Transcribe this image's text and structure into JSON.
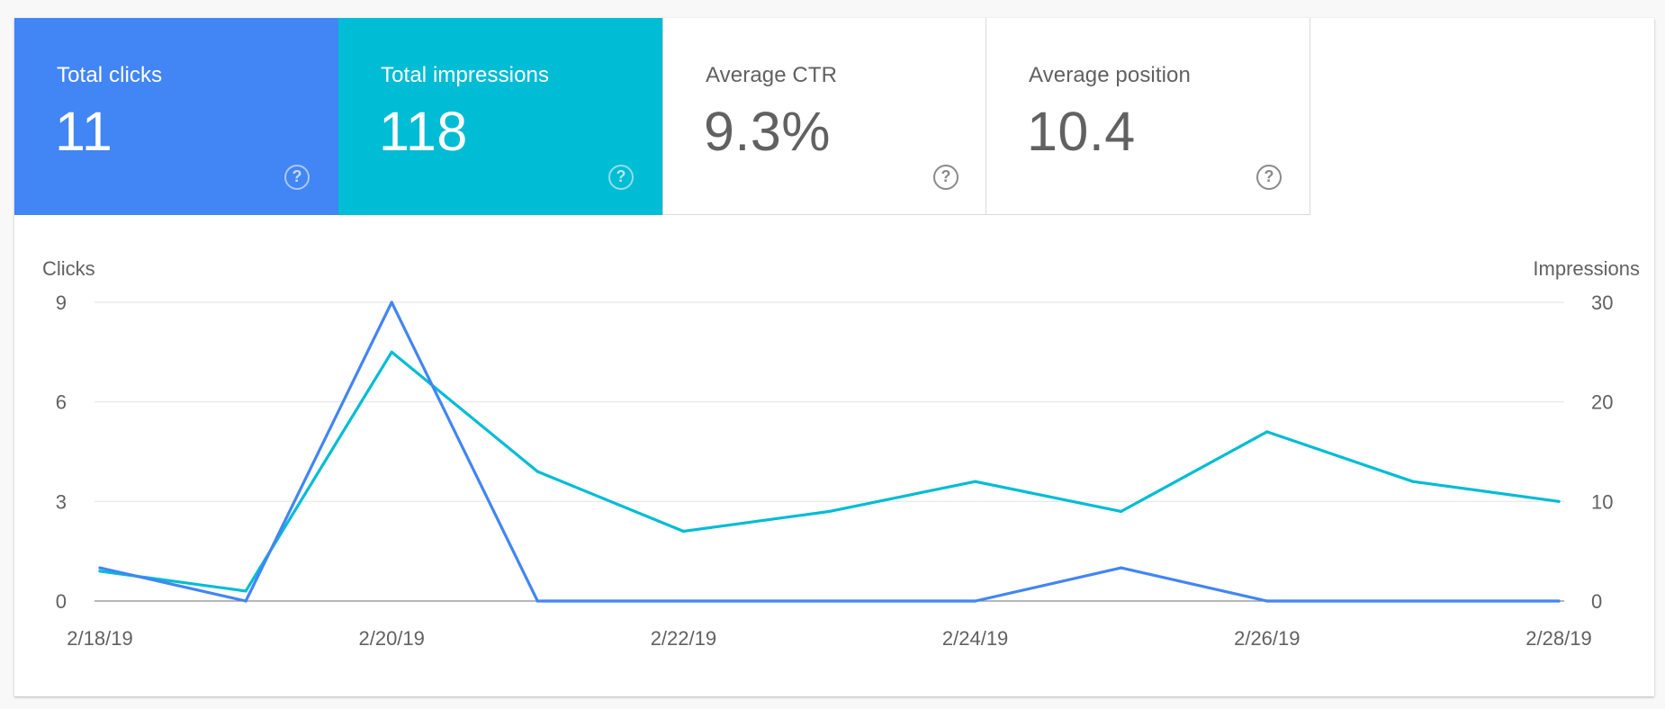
{
  "metrics": {
    "clicks": {
      "label": "Total clicks",
      "value": "11",
      "help": "?",
      "color": "#4285f4"
    },
    "impressions": {
      "label": "Total impressions",
      "value": "118",
      "help": "?",
      "color": "#00bcd4"
    },
    "ctr": {
      "label": "Average CTR",
      "value": "9.3%",
      "help": "?"
    },
    "position": {
      "label": "Average position",
      "value": "10.4",
      "help": "?"
    }
  },
  "chart_data": {
    "type": "line",
    "x": [
      "2/18/19",
      "2/19/19",
      "2/20/19",
      "2/21/19",
      "2/22/19",
      "2/23/19",
      "2/24/19",
      "2/25/19",
      "2/26/19",
      "2/27/19",
      "2/28/19"
    ],
    "x_tick_labels": [
      "2/18/19",
      "2/20/19",
      "2/22/19",
      "2/24/19",
      "2/26/19",
      "2/28/19"
    ],
    "ylabel_left": "Clicks",
    "ylabel_right": "Impressions",
    "y_left_ticks": [
      0,
      3,
      6,
      9
    ],
    "y_right_ticks": [
      0,
      10,
      20,
      30
    ],
    "ylim_left": [
      0,
      9
    ],
    "ylim_right": [
      0,
      30
    ],
    "grid": true,
    "series": [
      {
        "name": "Clicks",
        "axis": "left",
        "color": "#4285f4",
        "values": [
          1,
          0,
          9,
          0,
          0,
          0,
          0,
          1,
          0,
          0,
          0
        ]
      },
      {
        "name": "Impressions",
        "axis": "right",
        "color": "#00bcd4",
        "values": [
          3,
          1,
          25,
          13,
          7,
          9,
          12,
          9,
          17,
          12,
          10
        ]
      }
    ]
  }
}
